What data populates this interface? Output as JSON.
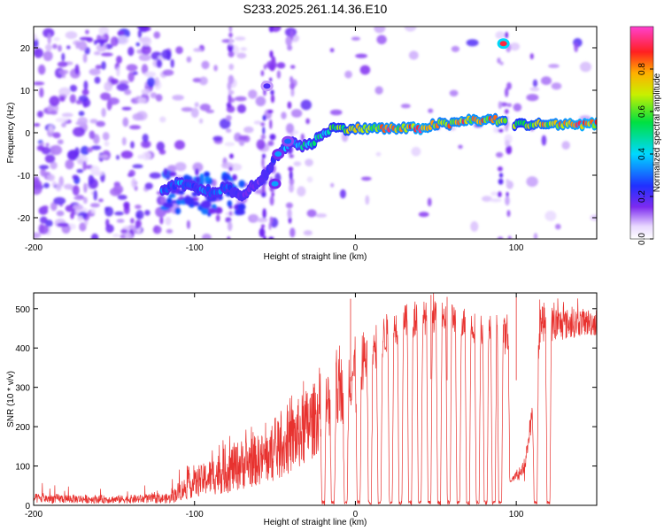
{
  "title": "S233.2025.261.14.36.E10",
  "chart_data": [
    {
      "type": "heatmap",
      "xlabel": "Height of straight line (km)",
      "ylabel": "Frequency (Hz)",
      "xlim": [
        -200,
        150
      ],
      "ylim": [
        -25,
        25
      ],
      "xticks": [
        "-200",
        "-100",
        "0",
        "100"
      ],
      "xtick_values": [
        -200,
        -100,
        0,
        100
      ],
      "yticks": [
        "20",
        "10",
        "0",
        "-10",
        "-20"
      ],
      "ytick_values": [
        20,
        10,
        0,
        -10,
        -20
      ],
      "grid": false,
      "colorbar": {
        "label": "Normalized spectral amplitude",
        "ticks": [
          "0.0",
          "0.2",
          "0.4",
          "0.6",
          "0.8"
        ],
        "tick_values": [
          0.0,
          0.2,
          0.4,
          0.6,
          0.8
        ],
        "range": [
          0,
          1
        ]
      },
      "ridge": {
        "x": [
          -120,
          -110,
          -100,
          -90,
          -80,
          -70,
          -60,
          -55,
          -50,
          -45,
          -40,
          -35,
          -30,
          -25,
          -20,
          -15,
          -10,
          0,
          10,
          20,
          30,
          40,
          50,
          60,
          70,
          80,
          88,
          100,
          110,
          120,
          130,
          140,
          150
        ],
        "freq": [
          -14,
          -12,
          -13,
          -14,
          -13,
          -15,
          -11,
          -10,
          -6,
          -4,
          -2,
          -3,
          -3,
          -2,
          0,
          1,
          1,
          1,
          1,
          1,
          1,
          1,
          2,
          2,
          3,
          3,
          3,
          2,
          2,
          2,
          2,
          2,
          2
        ],
        "amp": [
          0.3,
          0.35,
          0.3,
          0.35,
          0.3,
          0.2,
          0.2,
          0.25,
          0.25,
          0.35,
          0.4,
          0.45,
          0.5,
          0.6,
          0.5,
          0.6,
          0.6,
          0.75,
          0.8,
          0.85,
          0.8,
          0.9,
          0.8,
          0.8,
          0.85,
          0.85,
          0.8,
          0.6,
          0.7,
          0.8,
          0.85,
          0.9,
          0.9
        ]
      },
      "hotspots": [
        {
          "x": 92,
          "freq": 21,
          "amp": 0.9
        },
        {
          "x": -55,
          "freq": 11,
          "amp": 0.2
        },
        {
          "x": -50,
          "freq": -12,
          "amp": 0.35
        },
        {
          "x": -48,
          "freq": -5,
          "amp": 0.35
        },
        {
          "x": -42,
          "freq": -2,
          "amp": 0.3
        }
      ]
    },
    {
      "type": "line",
      "xlabel": "Height of straight line (km)",
      "ylabel": "SNR (10 * v/v)",
      "xlim": [
        -200,
        150
      ],
      "ylim": [
        0,
        540
      ],
      "xticks": [
        "-200",
        "-100",
        "0",
        "100"
      ],
      "xtick_values": [
        -200,
        -100,
        0,
        100
      ],
      "yticks": [
        "500",
        "400",
        "300",
        "200",
        "100",
        "0"
      ],
      "ytick_values": [
        500,
        400,
        300,
        200,
        100,
        0
      ],
      "grid": false,
      "color": "#e8322f",
      "envelope": {
        "x": [
          -200,
          -150,
          -115,
          -110,
          -100,
          -90,
          -80,
          -70,
          -60,
          -50,
          -40,
          -30,
          -20,
          -10,
          0,
          10,
          20,
          30,
          40,
          50,
          60,
          70,
          80,
          90,
          95,
          100,
          105,
          110,
          115,
          120,
          130,
          140,
          150
        ],
        "low": [
          5,
          5,
          5,
          10,
          20,
          25,
          30,
          40,
          50,
          60,
          80,
          100,
          150,
          200,
          260,
          330,
          390,
          420,
          430,
          440,
          440,
          420,
          400,
          420,
          360,
          70,
          80,
          190,
          420,
          410,
          420,
          430,
          430
        ],
        "high": [
          30,
          25,
          30,
          60,
          90,
          120,
          150,
          170,
          180,
          200,
          250,
          300,
          330,
          380,
          430,
          460,
          490,
          510,
          520,
          520,
          520,
          500,
          480,
          490,
          470,
          130,
          120,
          260,
          520,
          510,
          500,
          500,
          500
        ]
      },
      "notches": [
        -20,
        -14,
        -6,
        2,
        9,
        15,
        22,
        28,
        34,
        40,
        46,
        52,
        58,
        64,
        70,
        76,
        81,
        86,
        90,
        97,
        99,
        101,
        103,
        112,
        120
      ]
    }
  ]
}
